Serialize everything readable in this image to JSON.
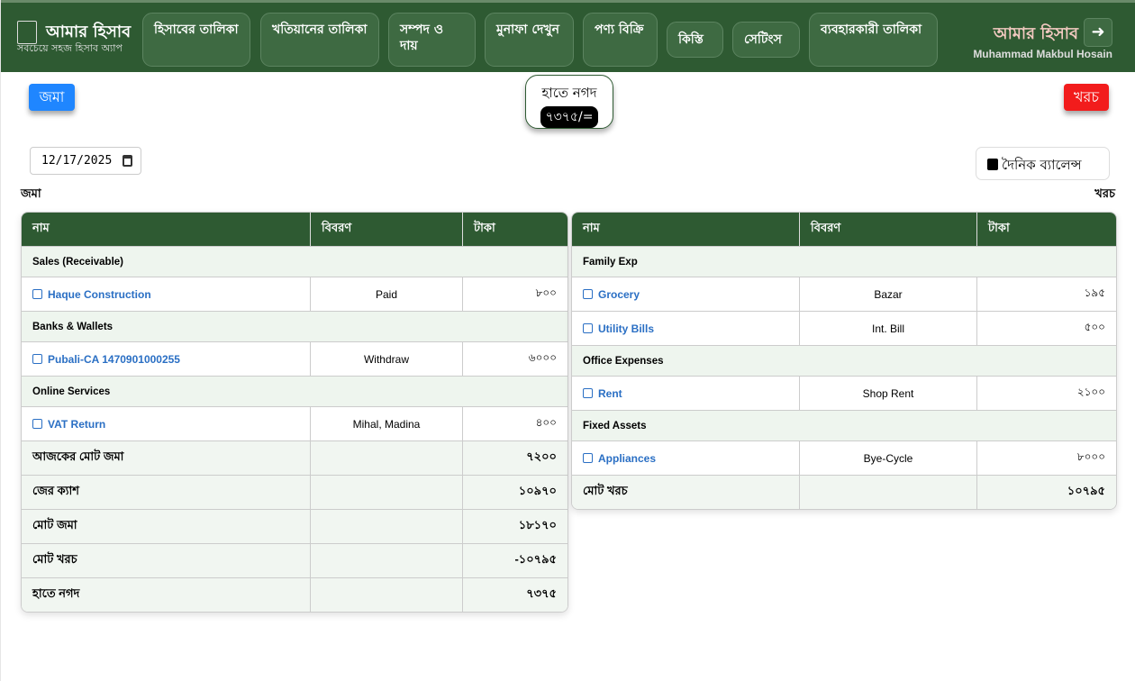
{
  "header": {
    "brand": "আমার হিসাব",
    "tagline": "সবচেয়ে সহজ হিসাব অ্যাপ",
    "nav": [
      "হিসাবের তালিকা",
      "খতিয়ানের তালিকা",
      "সম্পদ ও দায়",
      "মুনাফা দেখুন",
      "পণ্য বিক্রি",
      "কিস্তি",
      "সেটিংস",
      "ব্যবহারকারী তালিকা"
    ],
    "app_title": "আমার হিসাব",
    "user_name": "Muhammad Makbul Hosain",
    "logout_icon": "sign-out-icon"
  },
  "toolbar": {
    "deposit_button": "জমা",
    "expense_button": "খরচ",
    "cash_label": "হাতে নগদ",
    "cash_value": "৭৩৭৫/=",
    "date": "12/17/2025",
    "daily_balance": "দৈনিক ব্যালেন্স",
    "deposit_label": "জমা",
    "expense_label": "খরচ"
  },
  "colors": {
    "header": "#2e5a32",
    "deposit": "#1f86ff",
    "expense": "#f21c1c",
    "link": "#2a6fc4"
  },
  "deposit_table": {
    "columns": [
      "নাম",
      "বিবরণ",
      "টাকা"
    ],
    "groups": [
      {
        "name": "Sales (Receivable)",
        "items": [
          {
            "name": "Haque Construction",
            "desc": "Paid",
            "amount": "৮০০"
          }
        ]
      },
      {
        "name": "Banks & Wallets",
        "items": [
          {
            "name": "Pubali-CA 1470901000255",
            "desc": "Withdraw",
            "amount": "৬০০০"
          }
        ]
      },
      {
        "name": "Online Services",
        "items": [
          {
            "name": "VAT Return",
            "desc": "Mihal, Madina",
            "amount": "৪০০"
          }
        ]
      }
    ],
    "totals": [
      {
        "label": "আজকের মোট জমা",
        "amount": "৭২০০"
      },
      {
        "label": "জের ক্যাশ",
        "amount": "১০৯৭০"
      },
      {
        "label": "মোট জমা",
        "amount": "১৮১৭০"
      },
      {
        "label": "মোট খরচ",
        "amount": "-১০৭৯৫"
      },
      {
        "label": "হাতে নগদ",
        "amount": "৭৩৭৫"
      }
    ]
  },
  "expense_table": {
    "columns": [
      "নাম",
      "বিবরণ",
      "টাকা"
    ],
    "groups": [
      {
        "name": "Family Exp",
        "items": [
          {
            "name": "Grocery",
            "desc": "Bazar",
            "amount": "১৯৫"
          },
          {
            "name": "Utility Bills",
            "desc": "Int. Bill",
            "amount": "৫০০"
          }
        ]
      },
      {
        "name": "Office Expenses",
        "items": [
          {
            "name": "Rent",
            "desc": "Shop Rent",
            "amount": "২১০০"
          }
        ]
      },
      {
        "name": "Fixed Assets",
        "items": [
          {
            "name": "Appliances",
            "desc": "Bye-Cycle",
            "amount": "৮০০০"
          }
        ]
      }
    ],
    "totals": [
      {
        "label": "মোট খরচ",
        "amount": "১০৭৯৫"
      }
    ]
  }
}
